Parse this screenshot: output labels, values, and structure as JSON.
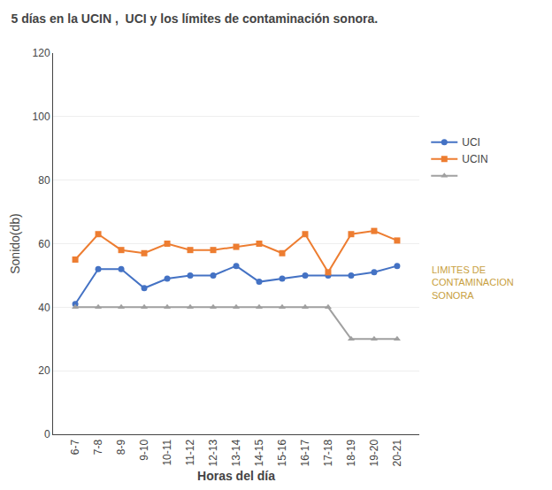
{
  "chart_data": {
    "type": "line",
    "title": "5 días en la UCIN ,  UCI y los límites de contaminación sonora.",
    "xlabel": "Horas del día",
    "ylabel": "Sonido(db)",
    "categories": [
      "6-7",
      "7-8",
      "8-9",
      "9-10",
      "10-11",
      "11-12",
      "12-13",
      "13-14",
      "14-15",
      "15-16",
      "16-17",
      "17-18",
      "18-19",
      "19-20",
      "20-21"
    ],
    "series": [
      {
        "name": "UCI",
        "color": "#4472C4",
        "marker": "circle",
        "values": [
          41,
          52,
          52,
          46,
          49,
          50,
          50,
          53,
          48,
          49,
          50,
          50,
          50,
          51,
          53
        ]
      },
      {
        "name": "UCIN",
        "color": "#ED7D31",
        "marker": "square",
        "values": [
          55,
          63,
          58,
          57,
          60,
          58,
          58,
          59,
          60,
          57,
          63,
          51,
          63,
          64,
          61
        ]
      },
      {
        "color": "#A0A0A0",
        "marker": "triangle-up",
        "values": [
          40,
          40,
          40,
          40,
          40,
          40,
          40,
          40,
          40,
          40,
          40,
          40,
          30,
          30,
          30
        ]
      }
    ],
    "annotations": [
      {
        "text": "LIMITES DE\nCONTAMINACION\nSONORA",
        "color": "#C8A040"
      }
    ],
    "ylim": [
      0,
      120
    ],
    "yticks": [
      0,
      20,
      40,
      60,
      80,
      100,
      120
    ],
    "grid": "y",
    "legend": "right"
  }
}
